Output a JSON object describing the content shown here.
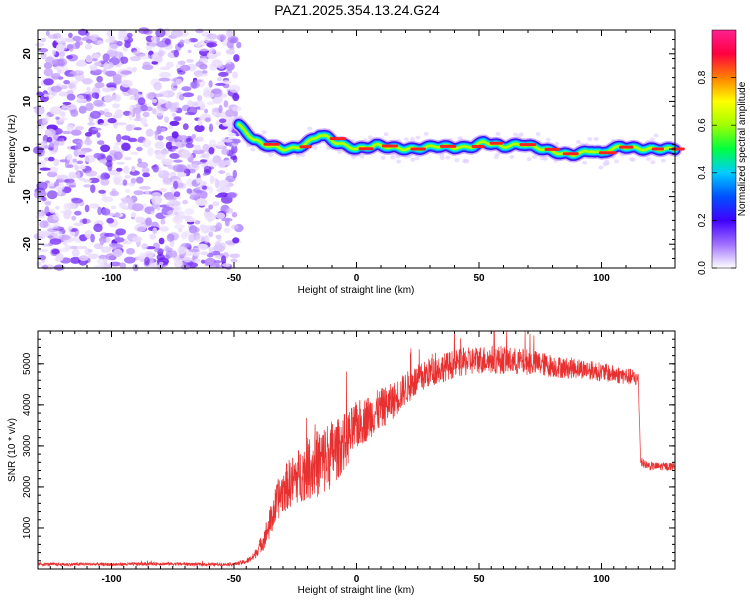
{
  "title": "PAZ1.2025.354.13.24.G24",
  "chart_data": [
    {
      "type": "heatmap",
      "name": "spectrogram",
      "xlabel": "Height of straight line (km)",
      "ylabel": "Frequency (Hz)",
      "xlim": [
        -130,
        130
      ],
      "ylim": [
        -25,
        25
      ],
      "xticks": [
        -100,
        -50,
        0,
        50,
        100
      ],
      "yticks": [
        -20,
        -10,
        0,
        10,
        20
      ],
      "noise_region_x": [
        -130,
        -48
      ],
      "signal_ridge": {
        "x": [
          -48,
          -45,
          -42,
          -38,
          -34,
          -30,
          -27,
          -24,
          -21,
          -18,
          -15,
          -12,
          -9,
          -6,
          -3,
          0,
          4,
          8,
          12,
          16,
          20,
          24,
          28,
          32,
          36,
          40,
          44,
          48,
          52,
          56,
          60,
          64,
          68,
          72,
          76,
          80,
          84,
          88,
          92,
          96,
          100,
          104,
          108,
          112,
          116,
          120,
          124,
          130
        ],
        "freq": [
          5,
          3.5,
          2,
          1,
          0.5,
          0,
          0,
          0.3,
          1,
          2,
          3,
          2.5,
          1.5,
          1,
          0.5,
          0,
          0.3,
          0.8,
          0.5,
          0.2,
          0,
          0,
          0.3,
          0.6,
          0.5,
          0.3,
          0.3,
          0.6,
          1.5,
          1,
          0.5,
          0.8,
          1,
          0.5,
          0,
          -0.5,
          -1,
          -1.2,
          -0.8,
          -0.3,
          -1,
          0,
          0.5,
          0.3,
          0,
          0,
          0,
          0
        ]
      }
    },
    {
      "type": "colorbar",
      "name": "amplitude-colorbar",
      "label": "Normalized spectral amplitude",
      "ticks": [
        "0.0",
        "0.2",
        "0.4",
        "0.6",
        "0.8"
      ],
      "range": [
        0,
        1
      ],
      "colors": [
        "#ffffff",
        "#a070ff",
        "#4000ff",
        "#0050ff",
        "#00ccff",
        "#00ff40",
        "#a0ff00",
        "#ffff00",
        "#ff8000",
        "#ff0040",
        "#ff2090"
      ]
    },
    {
      "type": "line",
      "name": "snr-plot",
      "xlabel": "Height of straight line (km)",
      "ylabel": "SNR (10 * v/v)",
      "xlim": [
        -130,
        130
      ],
      "ylim": [
        0,
        5800
      ],
      "xticks": [
        -100,
        -50,
        0,
        50,
        100
      ],
      "yticks": [
        1000,
        2000,
        3000,
        4000,
        5000
      ],
      "color": "#e83030",
      "series": [
        {
          "name": "SNR",
          "x": [
            -130,
            -120,
            -110,
            -100,
            -90,
            -80,
            -70,
            -60,
            -50,
            -45,
            -42,
            -40,
            -38,
            -36,
            -34,
            -32,
            -30,
            -28,
            -25,
            -22,
            -20,
            -18,
            -15,
            -12,
            -10,
            -8,
            -5,
            -2,
            0,
            5,
            10,
            15,
            20,
            25,
            30,
            35,
            40,
            45,
            50,
            55,
            60,
            65,
            70,
            75,
            80,
            85,
            90,
            95,
            100,
            105,
            110,
            114,
            115,
            116,
            118,
            120,
            125,
            130
          ],
          "y": [
            120,
            110,
            120,
            110,
            120,
            130,
            120,
            110,
            120,
            180,
            300,
            500,
            700,
            1000,
            1350,
            1700,
            1900,
            2050,
            2200,
            2350,
            2450,
            2500,
            2600,
            2700,
            2850,
            2900,
            3100,
            3300,
            3500,
            3700,
            3900,
            4100,
            4400,
            4600,
            4800,
            4900,
            5000,
            5050,
            5100,
            5100,
            5100,
            5050,
            5050,
            5000,
            4950,
            4900,
            4900,
            4850,
            4800,
            4750,
            4700,
            4650,
            4600,
            2600,
            2550,
            2500,
            2500,
            2500
          ],
          "noise_amplitude": [
            40,
            40,
            40,
            40,
            40,
            40,
            40,
            40,
            40,
            60,
            100,
            150,
            250,
            350,
            450,
            500,
            550,
            600,
            650,
            700,
            750,
            800,
            850,
            900,
            800,
            750,
            700,
            650,
            600,
            550,
            500,
            450,
            400,
            380,
            360,
            350,
            350,
            350,
            350,
            350,
            350,
            330,
            320,
            300,
            280,
            260,
            250,
            240,
            230,
            220,
            210,
            200,
            200,
            120,
            100,
            100,
            100,
            100
          ]
        }
      ]
    }
  ]
}
